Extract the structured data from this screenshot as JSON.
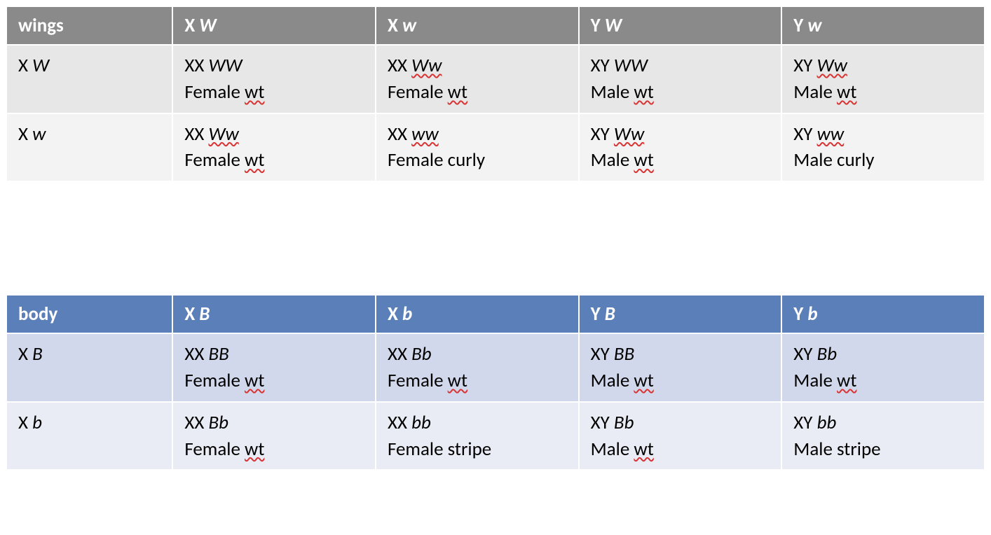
{
  "tables": {
    "wings": {
      "header_bg": "#8a8a8a",
      "row_dark_bg": "#e7e7e7",
      "row_light_bg": "#f3f3f3",
      "headers": [
        {
          "plain": "wings",
          "italic": ""
        },
        {
          "plain": "X ",
          "italic": "W"
        },
        {
          "plain": "X ",
          "italic": "w"
        },
        {
          "plain": "Y ",
          "italic": "W"
        },
        {
          "plain": "Y ",
          "italic": "w"
        }
      ],
      "rows": [
        {
          "label": {
            "plain": "X ",
            "italic": "W"
          },
          "cells": [
            {
              "g_plain": "XX ",
              "g_italic": "WW",
              "g_squig": false,
              "p_pre": "Female ",
              "p_sq": "wt",
              "p_post": ""
            },
            {
              "g_plain": "XX ",
              "g_italic": "Ww",
              "g_squig": true,
              "p_pre": "Female ",
              "p_sq": "wt",
              "p_post": ""
            },
            {
              "g_plain": "XY ",
              "g_italic": "WW",
              "g_squig": false,
              "p_pre": "Male ",
              "p_sq": "wt",
              "p_post": ""
            },
            {
              "g_plain": "XY ",
              "g_italic": "Ww",
              "g_squig": true,
              "p_pre": "Male ",
              "p_sq": "wt",
              "p_post": ""
            }
          ]
        },
        {
          "label": {
            "plain": "X ",
            "italic": "w"
          },
          "cells": [
            {
              "g_plain": "XX ",
              "g_italic": "Ww",
              "g_squig": true,
              "p_pre": "Female ",
              "p_sq": "wt",
              "p_post": ""
            },
            {
              "g_plain": "XX ",
              "g_italic": "ww",
              "g_squig": true,
              "p_pre": "Female ",
              "p_sq": "",
              "p_post": "curly"
            },
            {
              "g_plain": "XY ",
              "g_italic": "Ww",
              "g_squig": true,
              "p_pre": "Male ",
              "p_sq": "wt",
              "p_post": ""
            },
            {
              "g_plain": "XY ",
              "g_italic": "ww",
              "g_squig": true,
              "p_pre": "Male ",
              "p_sq": "",
              "p_post": "curly"
            }
          ]
        }
      ]
    },
    "body": {
      "header_bg": "#5b7fb9",
      "row_dark_bg": "#d2d8eb",
      "row_light_bg": "#e9ecf5",
      "headers": [
        {
          "plain": "body",
          "italic": ""
        },
        {
          "plain": "X ",
          "italic": "B"
        },
        {
          "plain": "X ",
          "italic": "b"
        },
        {
          "plain": "Y ",
          "italic": "B"
        },
        {
          "plain": "Y ",
          "italic": "b"
        }
      ],
      "rows": [
        {
          "label": {
            "plain": "X ",
            "italic": "B"
          },
          "cells": [
            {
              "g_plain": "XX ",
              "g_italic": "BB",
              "g_squig": false,
              "p_pre": "Female ",
              "p_sq": "wt",
              "p_post": ""
            },
            {
              "g_plain": "XX ",
              "g_italic": "Bb",
              "g_squig": false,
              "p_pre": "Female ",
              "p_sq": "wt",
              "p_post": ""
            },
            {
              "g_plain": "XY ",
              "g_italic": "BB",
              "g_squig": false,
              "p_pre": "Male ",
              "p_sq": "wt",
              "p_post": ""
            },
            {
              "g_plain": "XY ",
              "g_italic": "Bb",
              "g_squig": false,
              "p_pre": "Male ",
              "p_sq": "wt",
              "p_post": ""
            }
          ]
        },
        {
          "label": {
            "plain": "X ",
            "italic": "b"
          },
          "cells": [
            {
              "g_plain": "XX ",
              "g_italic": "Bb",
              "g_squig": false,
              "p_pre": "Female ",
              "p_sq": "wt",
              "p_post": ""
            },
            {
              "g_plain": "XX ",
              "g_italic": "bb",
              "g_squig": false,
              "p_pre": "Female ",
              "p_sq": "",
              "p_post": "stripe"
            },
            {
              "g_plain": "XY ",
              "g_italic": "Bb",
              "g_squig": false,
              "p_pre": "Male ",
              "p_sq": "wt",
              "p_post": ""
            },
            {
              "g_plain": "XY ",
              "g_italic": "bb",
              "g_squig": false,
              "p_pre": "Male ",
              "p_sq": "",
              "p_post": "stripe"
            }
          ]
        }
      ]
    }
  }
}
